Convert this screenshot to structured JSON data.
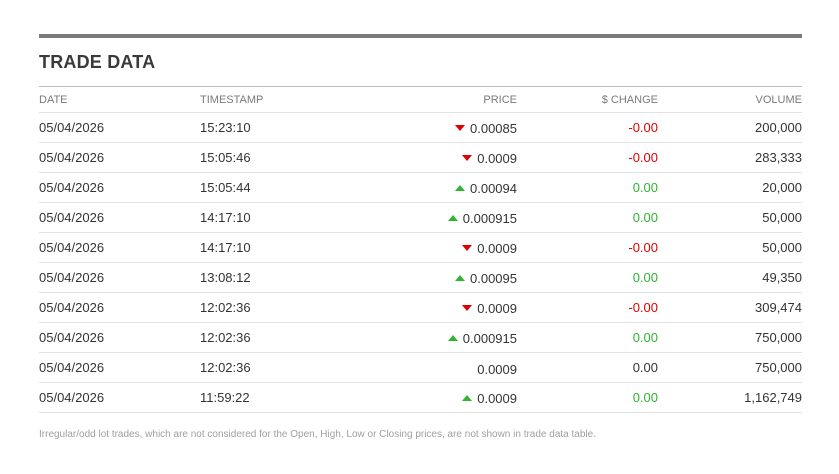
{
  "title": "TRADE DATA",
  "columns": {
    "date": "DATE",
    "timestamp": "TIMESTAMP",
    "price": "PRICE",
    "change": "$ CHANGE",
    "volume": "VOLUME"
  },
  "rows": [
    {
      "date": "05/04/2026",
      "timestamp": "15:23:10",
      "direction": "down",
      "price": "0.00085",
      "change": "-0.00",
      "change_status": "neg",
      "volume": "200,000"
    },
    {
      "date": "05/04/2026",
      "timestamp": "15:05:46",
      "direction": "down",
      "price": "0.0009",
      "change": "-0.00",
      "change_status": "neg",
      "volume": "283,333"
    },
    {
      "date": "05/04/2026",
      "timestamp": "15:05:44",
      "direction": "up",
      "price": "0.00094",
      "change": "0.00",
      "change_status": "pos",
      "volume": "20,000"
    },
    {
      "date": "05/04/2026",
      "timestamp": "14:17:10",
      "direction": "up",
      "price": "0.000915",
      "change": "0.00",
      "change_status": "pos",
      "volume": "50,000"
    },
    {
      "date": "05/04/2026",
      "timestamp": "14:17:10",
      "direction": "down",
      "price": "0.0009",
      "change": "-0.00",
      "change_status": "neg",
      "volume": "50,000"
    },
    {
      "date": "05/04/2026",
      "timestamp": "13:08:12",
      "direction": "up",
      "price": "0.00095",
      "change": "0.00",
      "change_status": "pos",
      "volume": "49,350"
    },
    {
      "date": "05/04/2026",
      "timestamp": "12:02:36",
      "direction": "down",
      "price": "0.0009",
      "change": "-0.00",
      "change_status": "neg",
      "volume": "309,474"
    },
    {
      "date": "05/04/2026",
      "timestamp": "12:02:36",
      "direction": "up",
      "price": "0.000915",
      "change": "0.00",
      "change_status": "pos",
      "volume": "750,000"
    },
    {
      "date": "05/04/2026",
      "timestamp": "12:02:36",
      "direction": "none",
      "price": "0.0009",
      "change": "0.00",
      "change_status": "neu",
      "volume": "750,000"
    },
    {
      "date": "05/04/2026",
      "timestamp": "11:59:22",
      "direction": "up",
      "price": "0.0009",
      "change": "0.00",
      "change_status": "pos",
      "volume": "1,162,749"
    }
  ],
  "footnote": "Irregular/odd lot trades, which are not considered for the Open, High, Low or Closing prices, are not shown in trade data table.",
  "colors": {
    "down": "#e00000",
    "up": "#2fb52f",
    "rule": "#7a7a7a"
  },
  "icons": {
    "down": "price-down-arrow-icon",
    "up": "price-up-arrow-icon"
  }
}
